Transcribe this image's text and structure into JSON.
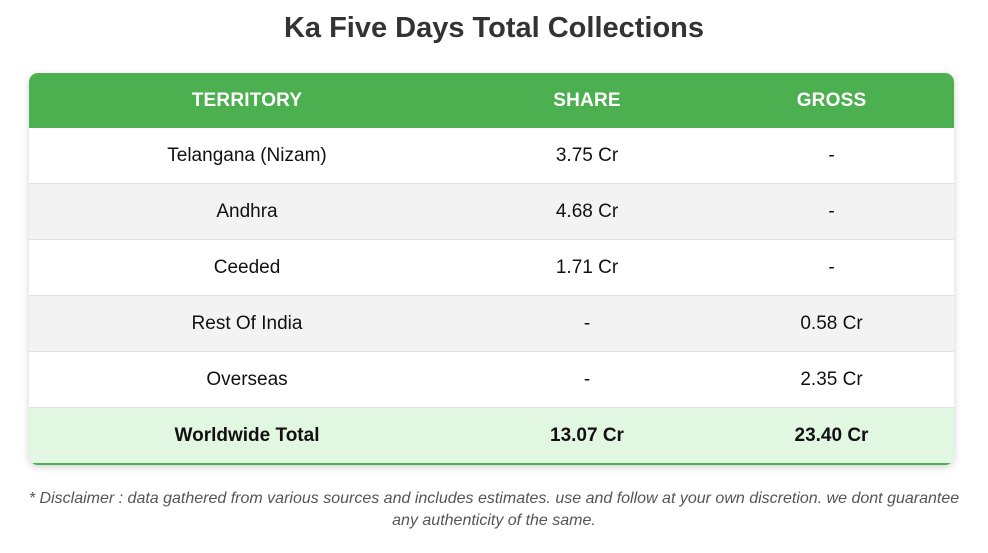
{
  "title": "Ka Five Days Total Collections",
  "table": {
    "headers": [
      "TERRITORY",
      "SHARE",
      "GROSS"
    ],
    "rows": [
      {
        "territory": "Telangana (Nizam)",
        "share": "3.75 Cr",
        "gross": "-"
      },
      {
        "territory": "Andhra",
        "share": "4.68 Cr",
        "gross": "-"
      },
      {
        "territory": "Ceeded",
        "share": "1.71 Cr",
        "gross": "-"
      },
      {
        "territory": "Rest Of India",
        "share": "-",
        "gross": "0.58 Cr"
      },
      {
        "territory": "Overseas",
        "share": "-",
        "gross": "2.35 Cr"
      }
    ],
    "total": {
      "territory": "Worldwide Total",
      "share": "13.07 Cr",
      "gross": "23.40 Cr"
    }
  },
  "disclaimer": "* Disclaimer : data gathered from various sources and includes estimates. use and follow at your own discretion. we dont guarantee any authenticity of the same.",
  "colors": {
    "header_bg": "#4caf50",
    "total_bg": "#e2f7e1",
    "title": "#333333"
  }
}
